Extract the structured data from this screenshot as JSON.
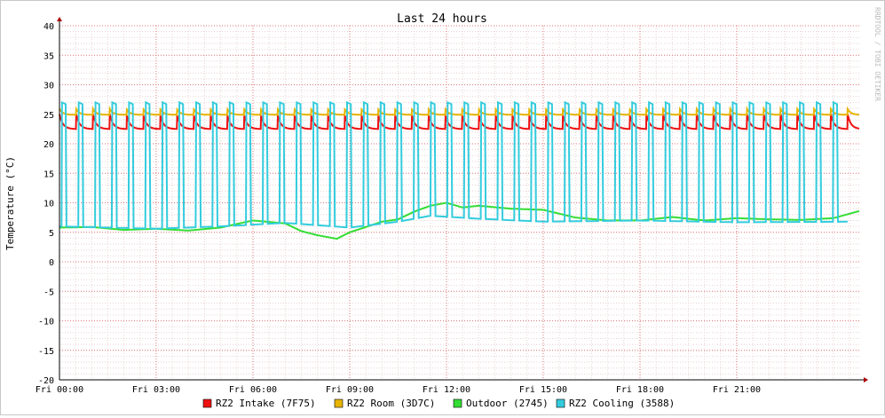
{
  "chart_data": {
    "type": "line",
    "title": "Last 24 hours",
    "ylabel": "Temperature (°C)",
    "watermark": "RRDTOOL / TOBI OETIKER",
    "ylim": [
      -20,
      40
    ],
    "yticks": [
      -20,
      -15,
      -10,
      -5,
      0,
      5,
      10,
      15,
      20,
      25,
      30,
      35,
      40
    ],
    "xlim": [
      0,
      24.8
    ],
    "x_unit": "hours since Fri 00:00",
    "xtick_labels": [
      {
        "x": 0,
        "label": "Fri 00:00"
      },
      {
        "x": 3,
        "label": "Fri 03:00"
      },
      {
        "x": 6,
        "label": "Fri 06:00"
      },
      {
        "x": 9,
        "label": "Fri 09:00"
      },
      {
        "x": 12,
        "label": "Fri 12:00"
      },
      {
        "x": 15,
        "label": "Fri 15:00"
      },
      {
        "x": 18,
        "label": "Fri 18:00"
      },
      {
        "x": 21,
        "label": "Fri 21:00"
      }
    ],
    "grid": true,
    "legend_position": "bottom",
    "series": [
      {
        "name": "RZ2 Intake (7F75)",
        "color": "#ee1111",
        "pattern": "sawtooth",
        "cycle_hours": 0.52,
        "start_hour": 0,
        "end_hour": 24.8,
        "high": 25.0,
        "low": 22.5
      },
      {
        "name": "RZ2 Room (3D7C)",
        "color": "#e8b400",
        "pattern": "sawtooth",
        "cycle_hours": 0.52,
        "start_hour": 0,
        "end_hour": 24.8,
        "high": 25.9,
        "low": 24.9
      },
      {
        "name": "Outdoor (2745)",
        "color": "#33dd33",
        "pattern": "smooth",
        "points": [
          [
            0,
            5.8
          ],
          [
            1,
            5.9
          ],
          [
            2,
            5.4
          ],
          [
            3,
            5.6
          ],
          [
            4,
            5.3
          ],
          [
            5,
            5.8
          ],
          [
            6,
            7.0
          ],
          [
            7,
            6.5
          ],
          [
            7.5,
            5.2
          ],
          [
            8,
            4.5
          ],
          [
            8.6,
            3.9
          ],
          [
            9,
            5.0
          ],
          [
            9.5,
            5.9
          ],
          [
            10,
            6.8
          ],
          [
            10.5,
            7.2
          ],
          [
            11,
            8.5
          ],
          [
            11.5,
            9.5
          ],
          [
            12,
            10.0
          ],
          [
            12.5,
            9.2
          ],
          [
            13,
            9.5
          ],
          [
            14,
            9.0
          ],
          [
            15,
            8.8
          ],
          [
            16,
            7.5
          ],
          [
            17,
            7.0
          ],
          [
            18,
            7.0
          ],
          [
            19,
            7.6
          ],
          [
            20,
            7.0
          ],
          [
            21,
            7.4
          ],
          [
            22,
            7.2
          ],
          [
            23,
            7.1
          ],
          [
            24,
            7.4
          ],
          [
            24.8,
            8.6
          ]
        ]
      },
      {
        "name": "RZ2 Cooling (3588)",
        "color": "#33ccdd",
        "pattern": "pulse",
        "cycle_hours": 0.52,
        "start_hour": 0,
        "end_hour": 24.8,
        "high": 27.0,
        "baseline_points": [
          [
            0,
            6.0
          ],
          [
            3,
            5.6
          ],
          [
            5,
            6.0
          ],
          [
            7,
            6.6
          ],
          [
            9,
            5.8
          ],
          [
            10.5,
            6.8
          ],
          [
            11.5,
            7.8
          ],
          [
            13,
            7.3
          ],
          [
            15,
            6.8
          ],
          [
            18,
            7.0
          ],
          [
            21,
            6.7
          ],
          [
            24.8,
            6.8
          ]
        ]
      }
    ]
  }
}
